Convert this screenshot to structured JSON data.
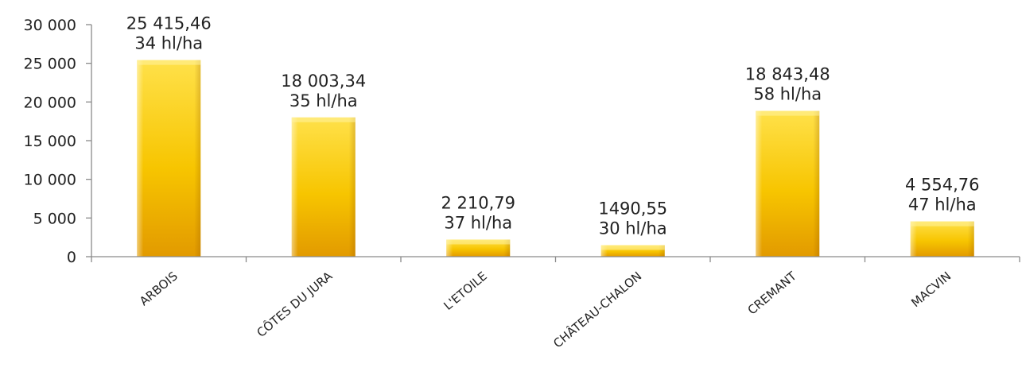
{
  "chart_data": {
    "type": "bar",
    "categories": [
      "ARBOIS",
      "CÔTES DU JURA",
      "L'ETOILE",
      "CHÂTEAU-CHALON",
      "CREMANT",
      "MACVIN"
    ],
    "values": [
      25415.46,
      18003.34,
      2210.79,
      1490.55,
      18843.48,
      4554.76
    ],
    "data_labels": [
      [
        "25 415,46",
        "34 hl/ha"
      ],
      [
        "18 003,34",
        "35 hl/ha"
      ],
      [
        "2 210,79",
        "37 hl/ha"
      ],
      [
        "1490,55",
        "30 hl/ha"
      ],
      [
        "18 843,48",
        "58 hl/ha"
      ],
      [
        "4 554,76",
        "47 hl/ha"
      ]
    ],
    "y_ticks": [
      {
        "value": 0,
        "label": "0"
      },
      {
        "value": 5000,
        "label": "5 000"
      },
      {
        "value": 10000,
        "label": "10 000"
      },
      {
        "value": 15000,
        "label": "15 000"
      },
      {
        "value": 20000,
        "label": "20 000"
      },
      {
        "value": 25000,
        "label": "25 000"
      },
      {
        "value": 30000,
        "label": "30 000"
      }
    ],
    "ylim": [
      0,
      30000
    ],
    "title": "",
    "xlabel": "",
    "ylabel": "",
    "grid": false,
    "legend": "none",
    "colors": {
      "bar_top": "#FFE14A",
      "bar_mid": "#F7C500",
      "bar_bottom": "#E29A00",
      "axis": "#8a8a8a",
      "text": "#222222"
    }
  }
}
